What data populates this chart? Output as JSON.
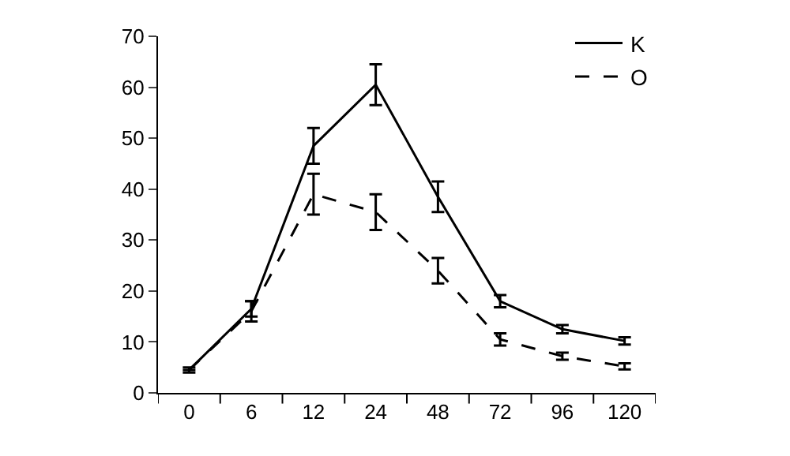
{
  "chart_data": {
    "type": "line",
    "categories": [
      "0",
      "6",
      "12",
      "24",
      "48",
      "72",
      "96",
      "120"
    ],
    "series": [
      {
        "name": "K",
        "color": "#000000",
        "line_style": "solid",
        "values": [
          4.5,
          16.5,
          48.5,
          60.5,
          38.5,
          18,
          12.5,
          10.2
        ],
        "errors": [
          0.5,
          1.5,
          3.5,
          4,
          3,
          1.2,
          0.8,
          0.7
        ]
      },
      {
        "name": "O",
        "color": "#000000",
        "line_style": "dashed",
        "values": [
          4.5,
          16,
          39,
          35.5,
          24,
          10.5,
          7.2,
          5.2
        ],
        "errors": [
          null,
          2,
          4,
          3.5,
          2.5,
          1.2,
          0.7,
          0.6
        ]
      }
    ],
    "ylim": [
      0,
      70
    ],
    "yticks": [
      0,
      10,
      20,
      30,
      40,
      50,
      60,
      70
    ],
    "legend": "top right",
    "marker": "none"
  }
}
